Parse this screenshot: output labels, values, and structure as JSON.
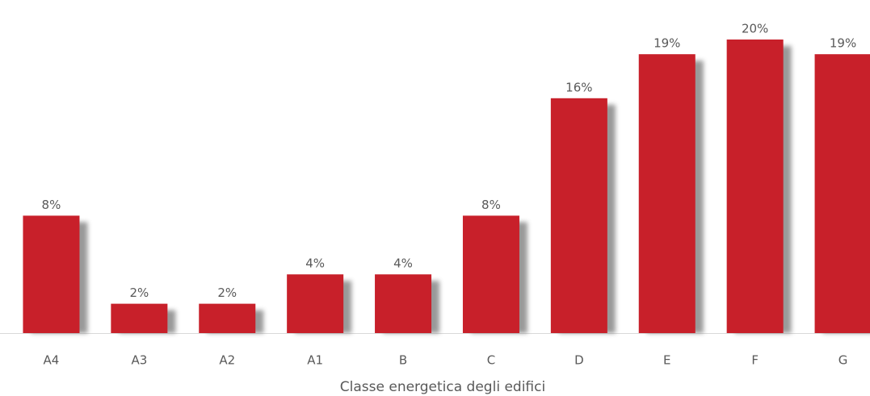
{
  "chart_data": {
    "type": "bar",
    "x_label": "Classe energetica degli edifici",
    "categories": [
      "A4",
      "A3",
      "A2",
      "A1",
      "B",
      "C",
      "D",
      "E",
      "F",
      "G"
    ],
    "values": [
      8,
      2,
      2,
      4,
      4,
      8,
      16,
      19,
      20,
      19
    ],
    "value_labels": [
      "8%",
      "2%",
      "2%",
      "4%",
      "4%",
      "8%",
      "16%",
      "19%",
      "20%",
      "19%"
    ],
    "color": "#c8202a"
  }
}
